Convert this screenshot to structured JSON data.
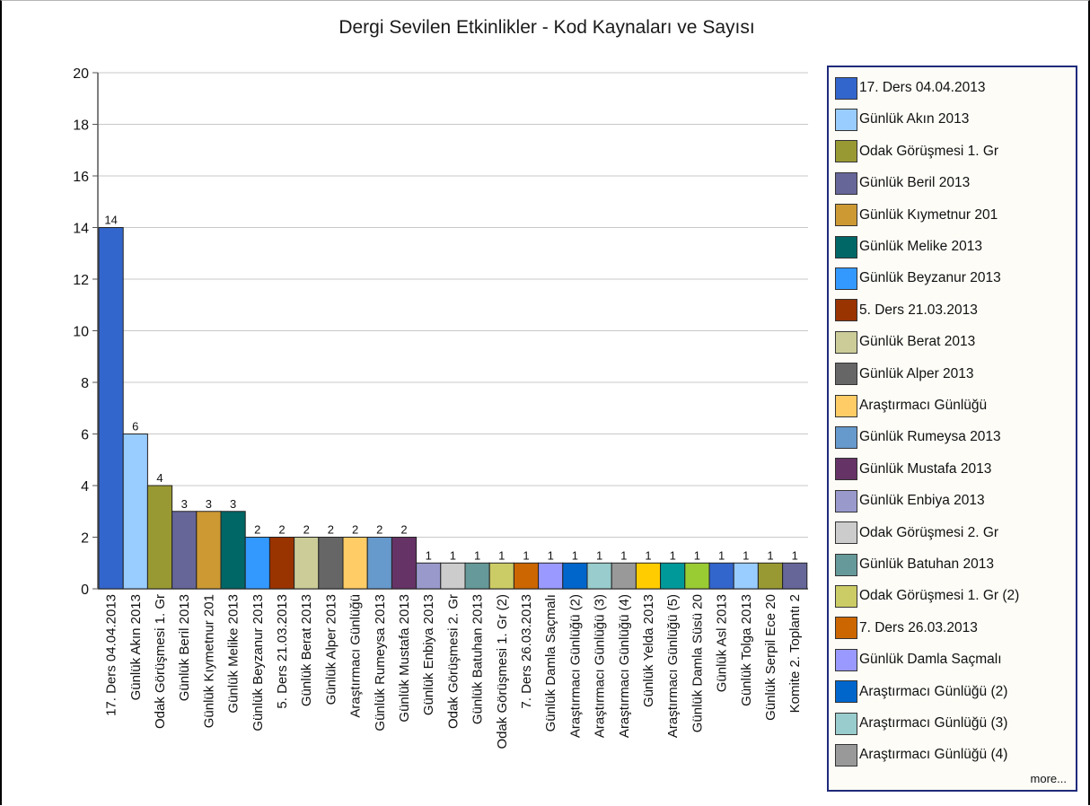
{
  "chart_data": {
    "type": "bar",
    "title": "Dergi Sevilen Etkinlikler - Kod Kaynaları ve Sayısı",
    "xlabel": "",
    "ylabel": "",
    "ylim": [
      0,
      20
    ],
    "yticks": [
      "0",
      "2",
      "4",
      "6",
      "8",
      "10",
      "12",
      "14",
      "16",
      "18",
      "20"
    ],
    "grid": true,
    "legend_position": "right",
    "legend_more": "more...",
    "categories": [
      "17. Ders 04.04.2013",
      "Günlük Akın 2013",
      "Odak Görüşmesi 1. Gr",
      "Günlük Beril 2013",
      "Günlük Kıymetnur 201",
      "Günlük Melike 2013",
      "Günlük Beyzanur 2013",
      "5. Ders 21.03.2013",
      "Günlük Berat 2013",
      "Günlük Alper 2013",
      "Araştırmacı Günlüğü",
      "Günlük Rumeysa 2013",
      "Günlük Mustafa 2013",
      "Günlük Enbiya 2013",
      "Odak Görüşmesi 2. Gr",
      "Günlük Batuhan 2013",
      "Odak Görüşmesi 1. Gr (2)",
      "7. Ders 26.03.2013",
      "Günlük Damla Saçmalı",
      "Araştırmacı Günlüğü (2)",
      "Araştırmacı Günlüğü (3)",
      "Araştırmacı Günlüğü (4)",
      "Günlük Yelda 2013",
      "Araştırmacı Günlüğü (5)",
      "Günlük Damla Süsü 20",
      "Günlük Asl 2013",
      "Günlük Tolga 2013",
      "Günlük Serpil Ece 20",
      "Komite 2. Toplantı 2"
    ],
    "values": [
      14,
      6,
      4,
      3,
      3,
      3,
      2,
      2,
      2,
      2,
      2,
      2,
      2,
      1,
      1,
      1,
      1,
      1,
      1,
      1,
      1,
      1,
      1,
      1,
      1,
      1,
      1,
      1,
      1
    ],
    "value_labels": [
      "14",
      "6",
      "4",
      "3",
      "3",
      "3",
      "2",
      "2",
      "2",
      "2",
      "2",
      "2",
      "2",
      "1",
      "1",
      "1",
      "1",
      "1",
      "1",
      "1",
      "1",
      "1",
      "1",
      "1",
      "1",
      "1",
      "1",
      "1",
      "1"
    ],
    "colors": [
      "#3366cc",
      "#99ccff",
      "#999933",
      "#666699",
      "#cc9933",
      "#006666",
      "#3399ff",
      "#993300",
      "#cccc99",
      "#666666",
      "#ffcc66",
      "#6699cc",
      "#663366",
      "#9999cc",
      "#cccccc",
      "#669999",
      "#cccc66",
      "#cc6600",
      "#9999ff",
      "#0066cc",
      "#99cccc",
      "#999999",
      "#ffcc00",
      "#009999",
      "#99cc33",
      "#3366cc",
      "#99ccff",
      "#999933",
      "#666699"
    ]
  },
  "legend": {
    "items": [
      {
        "label": "17. Ders 04.04.2013",
        "color": "#3366cc"
      },
      {
        "label": "Günlük Akın 2013",
        "color": "#99ccff"
      },
      {
        "label": "Odak Görüşmesi 1. Gr",
        "color": "#999933"
      },
      {
        "label": "Günlük Beril 2013",
        "color": "#666699"
      },
      {
        "label": "Günlük Kıymetnur 201",
        "color": "#cc9933"
      },
      {
        "label": "Günlük Melike 2013",
        "color": "#006666"
      },
      {
        "label": "Günlük Beyzanur 2013",
        "color": "#3399ff"
      },
      {
        "label": "5. Ders 21.03.2013",
        "color": "#993300"
      },
      {
        "label": "Günlük Berat 2013",
        "color": "#cccc99"
      },
      {
        "label": "Günlük Alper 2013",
        "color": "#666666"
      },
      {
        "label": "Araştırmacı Günlüğü",
        "color": "#ffcc66"
      },
      {
        "label": "Günlük Rumeysa 2013",
        "color": "#6699cc"
      },
      {
        "label": "Günlük Mustafa 2013",
        "color": "#663366"
      },
      {
        "label": "Günlük Enbiya 2013",
        "color": "#9999cc"
      },
      {
        "label": "Odak Görüşmesi 2. Gr",
        "color": "#cccccc"
      },
      {
        "label": "Günlük Batuhan 2013",
        "color": "#669999"
      },
      {
        "label": "Odak Görüşmesi 1. Gr (2)",
        "color": "#cccc66"
      },
      {
        "label": "7. Ders 26.03.2013",
        "color": "#cc6600"
      },
      {
        "label": "Günlük Damla Saçmalı",
        "color": "#9999ff"
      },
      {
        "label": "Araştırmacı Günlüğü (2)",
        "color": "#0066cc"
      },
      {
        "label": "Araştırmacı Günlüğü (3)",
        "color": "#99cccc"
      },
      {
        "label": "Araştırmacı Günlüğü (4)",
        "color": "#999999"
      }
    ]
  }
}
